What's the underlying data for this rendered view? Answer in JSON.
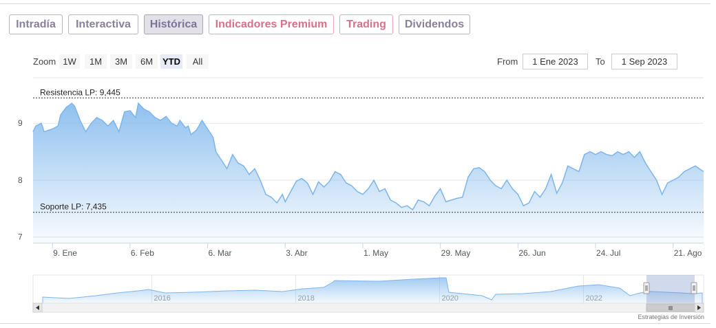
{
  "tabs": [
    {
      "label": "Intradía",
      "style": "purple"
    },
    {
      "label": "Interactiva",
      "style": "purple"
    },
    {
      "label": "Histórica",
      "style": "active"
    },
    {
      "label": "Indicadores Premium",
      "style": "pink"
    },
    {
      "label": "Trading",
      "style": "pink"
    },
    {
      "label": "Dividendos",
      "style": "purple"
    }
  ],
  "zoom": {
    "label": "Zoom",
    "buttons": [
      "1W",
      "1M",
      "3M",
      "6M",
      "YTD",
      "All"
    ],
    "selected": "YTD"
  },
  "range": {
    "from_label": "From",
    "from_value": "1 Ene 2023",
    "to_label": "To",
    "to_value": "1 Sep 2023"
  },
  "colors": {
    "series_line": "#7cb5ec",
    "accent_tab": "#8a809c",
    "premium_tab": "#d9708a"
  },
  "chart_data": {
    "type": "area",
    "title": "",
    "xlabel": "",
    "ylabel": "",
    "ylim": [
      6.9,
      9.8
    ],
    "y_ticks": [
      7,
      8,
      9
    ],
    "x_tick_labels": [
      "9. Ene",
      "6. Feb",
      "6. Mar",
      "3. Abr",
      "1. May",
      "29. May",
      "26. Jun",
      "24. Jul",
      "21. Ago"
    ],
    "x_tick_dates": [
      "2023-01-09",
      "2023-02-06",
      "2023-03-06",
      "2023-04-03",
      "2023-05-01",
      "2023-05-29",
      "2023-06-26",
      "2023-07-24",
      "2023-08-21"
    ],
    "x_range": [
      "2023-01-02",
      "2023-09-01"
    ],
    "grid": true,
    "legend": "none",
    "reference_lines": [
      {
        "label": "Resistencia LP: 9,445",
        "value": 9.445
      },
      {
        "label": "Soporte LP: 7,435",
        "value": 7.435
      }
    ],
    "series": [
      {
        "values": [
          [
            "2023-01-02",
            8.85
          ],
          [
            "2023-01-03",
            8.95
          ],
          [
            "2023-01-05",
            9.0
          ],
          [
            "2023-01-06",
            8.85
          ],
          [
            "2023-01-09",
            8.9
          ],
          [
            "2023-01-11",
            8.95
          ],
          [
            "2023-01-12",
            9.15
          ],
          [
            "2023-01-14",
            9.28
          ],
          [
            "2023-01-16",
            9.35
          ],
          [
            "2023-01-17",
            9.3
          ],
          [
            "2023-01-19",
            9.05
          ],
          [
            "2023-01-21",
            8.85
          ],
          [
            "2023-01-23",
            9.0
          ],
          [
            "2023-01-25",
            9.1
          ],
          [
            "2023-01-27",
            9.05
          ],
          [
            "2023-01-29",
            8.95
          ],
          [
            "2023-01-31",
            9.05
          ],
          [
            "2023-02-02",
            8.85
          ],
          [
            "2023-02-04",
            9.2
          ],
          [
            "2023-02-06",
            9.22
          ],
          [
            "2023-02-08",
            9.1
          ],
          [
            "2023-02-09",
            9.35
          ],
          [
            "2023-02-11",
            9.25
          ],
          [
            "2023-02-13",
            9.2
          ],
          [
            "2023-02-15",
            9.1
          ],
          [
            "2023-02-17",
            9.05
          ],
          [
            "2023-02-19",
            9.12
          ],
          [
            "2023-02-21",
            9.0
          ],
          [
            "2023-02-23",
            8.95
          ],
          [
            "2023-02-24",
            9.05
          ],
          [
            "2023-02-26",
            8.92
          ],
          [
            "2023-02-27",
            8.95
          ],
          [
            "2023-02-28",
            8.8
          ],
          [
            "2023-03-02",
            8.88
          ],
          [
            "2023-03-04",
            9.05
          ],
          [
            "2023-03-06",
            8.9
          ],
          [
            "2023-03-08",
            8.75
          ],
          [
            "2023-03-09",
            8.5
          ],
          [
            "2023-03-11",
            8.35
          ],
          [
            "2023-03-13",
            8.2
          ],
          [
            "2023-03-15",
            8.45
          ],
          [
            "2023-03-17",
            8.3
          ],
          [
            "2023-03-19",
            8.25
          ],
          [
            "2023-03-21",
            8.1
          ],
          [
            "2023-03-23",
            8.2
          ],
          [
            "2023-03-25",
            8.0
          ],
          [
            "2023-03-27",
            7.75
          ],
          [
            "2023-03-29",
            7.7
          ],
          [
            "2023-03-31",
            7.6
          ],
          [
            "2023-04-02",
            7.75
          ],
          [
            "2023-04-03",
            7.62
          ],
          [
            "2023-04-05",
            7.8
          ],
          [
            "2023-04-07",
            7.98
          ],
          [
            "2023-04-09",
            8.03
          ],
          [
            "2023-04-11",
            7.95
          ],
          [
            "2023-04-13",
            7.75
          ],
          [
            "2023-04-15",
            7.97
          ],
          [
            "2023-04-17",
            7.88
          ],
          [
            "2023-04-19",
            7.98
          ],
          [
            "2023-04-21",
            8.15
          ],
          [
            "2023-04-23",
            8.1
          ],
          [
            "2023-04-25",
            7.95
          ],
          [
            "2023-04-27",
            7.9
          ],
          [
            "2023-04-29",
            7.8
          ],
          [
            "2023-05-01",
            7.75
          ],
          [
            "2023-05-03",
            7.85
          ],
          [
            "2023-05-05",
            8.0
          ],
          [
            "2023-05-07",
            7.8
          ],
          [
            "2023-05-09",
            7.85
          ],
          [
            "2023-05-11",
            7.65
          ],
          [
            "2023-05-13",
            7.6
          ],
          [
            "2023-05-15",
            7.52
          ],
          [
            "2023-05-17",
            7.55
          ],
          [
            "2023-05-19",
            7.48
          ],
          [
            "2023-05-21",
            7.65
          ],
          [
            "2023-05-23",
            7.62
          ],
          [
            "2023-05-25",
            7.55
          ],
          [
            "2023-05-27",
            7.72
          ],
          [
            "2023-05-29",
            7.85
          ],
          [
            "2023-05-31",
            7.62
          ],
          [
            "2023-06-02",
            7.65
          ],
          [
            "2023-06-04",
            7.68
          ],
          [
            "2023-06-06",
            7.7
          ],
          [
            "2023-06-08",
            8.05
          ],
          [
            "2023-06-10",
            8.2
          ],
          [
            "2023-06-12",
            8.22
          ],
          [
            "2023-06-14",
            8.15
          ],
          [
            "2023-06-16",
            8.0
          ],
          [
            "2023-06-18",
            7.9
          ],
          [
            "2023-06-20",
            7.85
          ],
          [
            "2023-06-22",
            8.0
          ],
          [
            "2023-06-24",
            7.85
          ],
          [
            "2023-06-26",
            7.75
          ],
          [
            "2023-06-28",
            7.55
          ],
          [
            "2023-06-30",
            7.6
          ],
          [
            "2023-07-02",
            7.8
          ],
          [
            "2023-07-04",
            7.7
          ],
          [
            "2023-07-06",
            7.85
          ],
          [
            "2023-07-08",
            8.1
          ],
          [
            "2023-07-10",
            7.77
          ],
          [
            "2023-07-12",
            7.95
          ],
          [
            "2023-07-14",
            8.25
          ],
          [
            "2023-07-16",
            8.2
          ],
          [
            "2023-07-18",
            8.15
          ],
          [
            "2023-07-20",
            8.45
          ],
          [
            "2023-07-22",
            8.5
          ],
          [
            "2023-07-24",
            8.45
          ],
          [
            "2023-07-26",
            8.5
          ],
          [
            "2023-07-28",
            8.45
          ],
          [
            "2023-07-30",
            8.43
          ],
          [
            "2023-08-01",
            8.5
          ],
          [
            "2023-08-03",
            8.45
          ],
          [
            "2023-08-05",
            8.5
          ],
          [
            "2023-08-07",
            8.4
          ],
          [
            "2023-08-09",
            8.5
          ],
          [
            "2023-08-11",
            8.3
          ],
          [
            "2023-08-13",
            8.15
          ],
          [
            "2023-08-15",
            8.0
          ],
          [
            "2023-08-17",
            7.75
          ],
          [
            "2023-08-19",
            7.95
          ],
          [
            "2023-08-21",
            8.0
          ],
          [
            "2023-08-23",
            8.05
          ],
          [
            "2023-08-25",
            8.15
          ],
          [
            "2023-08-27",
            8.2
          ],
          [
            "2023-08-29",
            8.25
          ],
          [
            "2023-09-01",
            8.15
          ]
        ]
      }
    ],
    "navigator": {
      "x_tick_labels": [
        "2016",
        "2018",
        "2020",
        "2022"
      ],
      "x_tick_years": [
        2016,
        2018,
        2020,
        2022
      ],
      "x_range_years": [
        2014.35,
        2023.67
      ]
    }
  },
  "credit": "Estrategias de Inversión"
}
